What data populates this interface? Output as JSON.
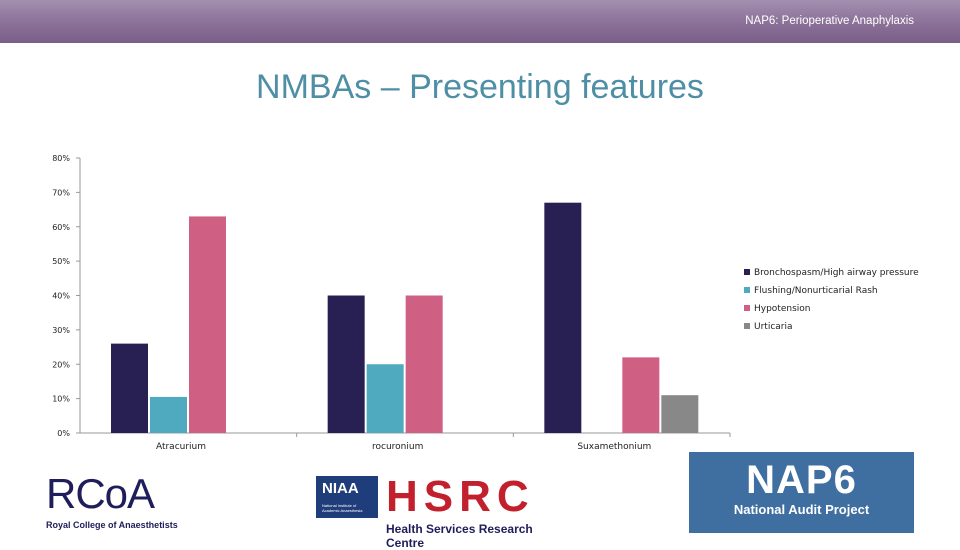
{
  "header": {
    "title": "NAP6: Perioperative Anaphylaxis"
  },
  "slide": {
    "title": "NMBAs – Presenting features"
  },
  "chart_data": {
    "type": "bar",
    "categories": [
      "Atracurium",
      "rocuronium",
      "Suxamethonium"
    ],
    "series": [
      {
        "name": "Bronchospasm/High airway pressure",
        "color": "#282052",
        "values": [
          26,
          40,
          67
        ]
      },
      {
        "name": "Flushing/Nonurticarial Rash",
        "color": "#4fa9bf",
        "values": [
          10.5,
          20,
          0
        ]
      },
      {
        "name": "Hypotension",
        "color": "#cf5f83",
        "values": [
          63,
          40,
          22
        ]
      },
      {
        "name": "Urticaria",
        "color": "#888888",
        "values": [
          0,
          0,
          11
        ]
      }
    ],
    "ylim": [
      0,
      80
    ],
    "yticks": [
      "0%",
      "10%",
      "20%",
      "30%",
      "40%",
      "50%",
      "60%",
      "70%",
      "80%"
    ],
    "legend_position": "right",
    "grid": false
  },
  "logos": {
    "rcoa": {
      "mark": "RCoA",
      "text": "Royal College of Anaesthetists"
    },
    "niaa": {
      "word": "NIAA",
      "sub": "National Institute of Academic Anaesthesia"
    },
    "hsrc": {
      "letters": "HSRC",
      "full": "Health Services Research Centre"
    },
    "nap6": {
      "big": "NAP6",
      "small": "National Audit Project"
    }
  }
}
